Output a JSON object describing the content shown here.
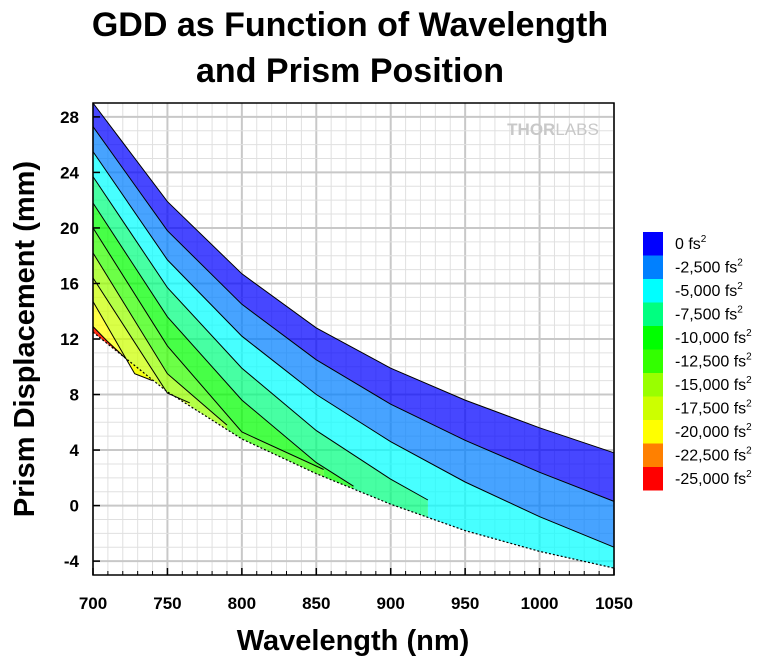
{
  "chart_data": {
    "type": "area",
    "title_lines": [
      "GDD as Function of Wavelength",
      "and Prism Position"
    ],
    "xlabel": "Wavelength (nm)",
    "ylabel": "Prism Displacement (mm)",
    "xlim": [
      700,
      1050
    ],
    "ylim": [
      -5,
      29
    ],
    "x_ticks": [
      700,
      750,
      800,
      850,
      900,
      950,
      1000,
      1050
    ],
    "y_ticks": [
      -4,
      0,
      4,
      8,
      12,
      16,
      20,
      24,
      28
    ],
    "grid": true,
    "watermark": {
      "part1": "THOR",
      "part2": "LABS"
    },
    "contour_levels_fs2": [
      0,
      -2500,
      -5000,
      -7500,
      -10000,
      -12500,
      -15000,
      -17500,
      -20000,
      -22500,
      -25000
    ],
    "contour_lines": [
      {
        "level": 0,
        "x": [
          700,
          750,
          800,
          850,
          900,
          950,
          1000,
          1050
        ],
        "y": [
          29,
          21.9,
          16.7,
          12.8,
          9.9,
          7.6,
          5.6,
          3.8
        ]
      },
      {
        "level": -2500,
        "x": [
          700,
          750,
          800,
          850,
          900,
          950,
          1000,
          1050
        ],
        "y": [
          27.3,
          19.8,
          14.5,
          10.5,
          7.3,
          4.7,
          2.4,
          0.3
        ]
      },
      {
        "level": -5000,
        "x": [
          700,
          750,
          800,
          850,
          900,
          950,
          1000,
          1050
        ],
        "y": [
          25.5,
          17.7,
          12.2,
          8.0,
          4.6,
          1.7,
          -0.8,
          -3.0
        ]
      },
      {
        "level": -7500,
        "x": [
          700,
          750,
          800,
          850,
          900,
          925
        ],
        "y": [
          23.7,
          15.7,
          9.9,
          5.4,
          1.9,
          0.4
        ]
      },
      {
        "level": -10000,
        "x": [
          700,
          750,
          800,
          850,
          875
        ],
        "y": [
          21.8,
          13.6,
          7.6,
          3.1,
          1.4
        ]
      },
      {
        "level": -12500,
        "x": [
          700,
          750,
          800,
          855
        ],
        "y": [
          20.0,
          11.5,
          5.3,
          2.6
        ]
      },
      {
        "level": -15000,
        "x": [
          700,
          750,
          790
        ],
        "y": [
          18.2,
          9.5,
          5.8
        ]
      },
      {
        "level": -17500,
        "x": [
          700,
          750,
          765
        ],
        "y": [
          16.4,
          8.1,
          7.4
        ]
      },
      {
        "level": -20000,
        "x": [
          700,
          728,
          740
        ],
        "y": [
          14.7,
          9.5,
          9.0
        ]
      },
      {
        "level": -22500,
        "x": [
          700,
          710,
          722
        ],
        "y": [
          12.9,
          11.8,
          10.6
        ]
      }
    ],
    "lower_boundary": {
      "x": [
        700,
        750,
        800,
        850,
        900,
        950,
        1000,
        1050
      ],
      "y": [
        12.5,
        8.2,
        4.8,
        2.3,
        0.1,
        -1.8,
        -3.3,
        -4.5
      ]
    },
    "legend": {
      "placement": "right",
      "unit": "fs",
      "unit_sup": "2",
      "items": [
        {
          "label": "0",
          "color": "#0000ff"
        },
        {
          "label": "-2,500",
          "color": "#0080ff"
        },
        {
          "label": "-5,000",
          "color": "#00ffff"
        },
        {
          "label": "-7,500",
          "color": "#00ff80"
        },
        {
          "label": "-10,000",
          "color": "#00ff00"
        },
        {
          "label": "-12,500",
          "color": "#33ff00"
        },
        {
          "label": "-15,000",
          "color": "#99ff00"
        },
        {
          "label": "-17,500",
          "color": "#ccff00"
        },
        {
          "label": "-20,000",
          "color": "#ffff00"
        },
        {
          "label": "-22,500",
          "color": "#ff8000"
        },
        {
          "label": "-25,000",
          "color": "#ff0000"
        }
      ]
    }
  }
}
